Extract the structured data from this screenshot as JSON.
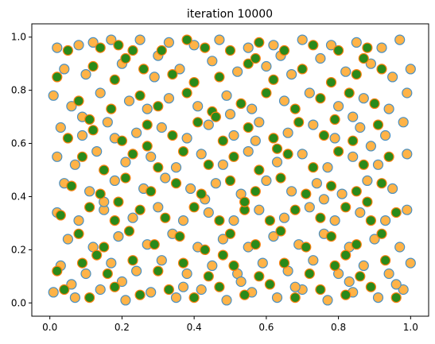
{
  "chart_data": {
    "type": "scatter",
    "title": "iteration 10000",
    "xlabel": "",
    "ylabel": "",
    "xlim": [
      -0.05,
      1.05
    ],
    "ylim": [
      -0.05,
      1.05
    ],
    "xticks": [
      0.0,
      0.2,
      0.4,
      0.6,
      0.8,
      1.0
    ],
    "yticks": [
      0.0,
      0.2,
      0.4,
      0.6,
      0.8,
      1.0
    ],
    "xtick_labels": [
      "0.0",
      "0.2",
      "0.4",
      "0.6",
      "0.8",
      "1.0"
    ],
    "ytick_labels": [
      "0.0",
      "0.2",
      "0.4",
      "0.6",
      "0.8",
      "1.0"
    ],
    "grid": false,
    "colors": {
      "orange_fill": "#ffb347",
      "orange_edge": "#4a8fc0",
      "green_fill": "#2a8a1a",
      "green_edge": "#ff7f0e"
    },
    "series": [
      {
        "style": "orange-fill-blue-edge",
        "points": [
          [
            0.02,
            0.96
          ],
          [
            0.08,
            0.97
          ],
          [
            0.12,
            0.98
          ],
          [
            0.17,
            0.99
          ],
          [
            0.25,
            0.99
          ],
          [
            0.33,
            0.98
          ],
          [
            0.4,
            0.97
          ],
          [
            0.47,
            0.99
          ],
          [
            0.55,
            0.96
          ],
          [
            0.62,
            0.97
          ],
          [
            0.7,
            0.99
          ],
          [
            0.78,
            0.97
          ],
          [
            0.85,
            0.98
          ],
          [
            0.92,
            0.96
          ],
          [
            0.97,
            0.99
          ],
          [
            0.04,
            0.88
          ],
          [
            0.1,
            0.86
          ],
          [
            0.2,
            0.9
          ],
          [
            0.29,
            0.85
          ],
          [
            0.36,
            0.88
          ],
          [
            0.45,
            0.91
          ],
          [
            0.52,
            0.87
          ],
          [
            0.6,
            0.89
          ],
          [
            0.67,
            0.86
          ],
          [
            0.75,
            0.92
          ],
          [
            0.82,
            0.87
          ],
          [
            0.89,
            0.9
          ],
          [
            0.95,
            0.85
          ],
          [
            1.0,
            0.88
          ],
          [
            0.01,
            0.78
          ],
          [
            0.06,
            0.74
          ],
          [
            0.14,
            0.79
          ],
          [
            0.22,
            0.76
          ],
          [
            0.27,
            0.73
          ],
          [
            0.33,
            0.77
          ],
          [
            0.41,
            0.74
          ],
          [
            0.49,
            0.78
          ],
          [
            0.56,
            0.73
          ],
          [
            0.65,
            0.76
          ],
          [
            0.72,
            0.79
          ],
          [
            0.8,
            0.74
          ],
          [
            0.87,
            0.77
          ],
          [
            0.94,
            0.73
          ],
          [
            0.99,
            0.79
          ],
          [
            0.03,
            0.66
          ],
          [
            0.09,
            0.63
          ],
          [
            0.16,
            0.68
          ],
          [
            0.24,
            0.64
          ],
          [
            0.31,
            0.66
          ],
          [
            0.38,
            0.62
          ],
          [
            0.44,
            0.67
          ],
          [
            0.51,
            0.63
          ],
          [
            0.58,
            0.68
          ],
          [
            0.66,
            0.64
          ],
          [
            0.73,
            0.67
          ],
          [
            0.79,
            0.62
          ],
          [
            0.86,
            0.66
          ],
          [
            0.93,
            0.63
          ],
          [
            0.98,
            0.68
          ],
          [
            0.02,
            0.55
          ],
          [
            0.07,
            0.52
          ],
          [
            0.13,
            0.57
          ],
          [
            0.21,
            0.53
          ],
          [
            0.28,
            0.55
          ],
          [
            0.35,
            0.51
          ],
          [
            0.42,
            0.56
          ],
          [
            0.48,
            0.52
          ],
          [
            0.55,
            0.57
          ],
          [
            0.63,
            0.53
          ],
          [
            0.7,
            0.56
          ],
          [
            0.77,
            0.51
          ],
          [
            0.84,
            0.55
          ],
          [
            0.91,
            0.52
          ],
          [
            0.99,
            0.56
          ],
          [
            0.04,
            0.45
          ],
          [
            0.11,
            0.42
          ],
          [
            0.18,
            0.46
          ],
          [
            0.26,
            0.43
          ],
          [
            0.32,
            0.47
          ],
          [
            0.39,
            0.43
          ],
          [
            0.46,
            0.45
          ],
          [
            0.53,
            0.41
          ],
          [
            0.6,
            0.46
          ],
          [
            0.67,
            0.42
          ],
          [
            0.74,
            0.45
          ],
          [
            0.81,
            0.41
          ],
          [
            0.88,
            0.46
          ],
          [
            0.95,
            0.43
          ],
          [
            0.02,
            0.34
          ],
          [
            0.08,
            0.31
          ],
          [
            0.15,
            0.35
          ],
          [
            0.23,
            0.32
          ],
          [
            0.3,
            0.36
          ],
          [
            0.37,
            0.31
          ],
          [
            0.44,
            0.34
          ],
          [
            0.51,
            0.31
          ],
          [
            0.58,
            0.35
          ],
          [
            0.65,
            0.32
          ],
          [
            0.72,
            0.36
          ],
          [
            0.79,
            0.31
          ],
          [
            0.86,
            0.34
          ],
          [
            0.93,
            0.31
          ],
          [
            0.99,
            0.35
          ],
          [
            0.05,
            0.24
          ],
          [
            0.12,
            0.21
          ],
          [
            0.19,
            0.25
          ],
          [
            0.27,
            0.22
          ],
          [
            0.34,
            0.26
          ],
          [
            0.41,
            0.21
          ],
          [
            0.48,
            0.24
          ],
          [
            0.55,
            0.21
          ],
          [
            0.62,
            0.25
          ],
          [
            0.69,
            0.22
          ],
          [
            0.76,
            0.26
          ],
          [
            0.83,
            0.21
          ],
          [
            0.9,
            0.24
          ],
          [
            0.97,
            0.21
          ],
          [
            0.03,
            0.14
          ],
          [
            0.1,
            0.11
          ],
          [
            0.17,
            0.15
          ],
          [
            0.24,
            0.12
          ],
          [
            0.31,
            0.16
          ],
          [
            0.38,
            0.11
          ],
          [
            0.45,
            0.14
          ],
          [
            0.52,
            0.11
          ],
          [
            0.59,
            0.15
          ],
          [
            0.66,
            0.12
          ],
          [
            0.73,
            0.16
          ],
          [
            0.8,
            0.11
          ],
          [
            0.87,
            0.14
          ],
          [
            0.94,
            0.11
          ],
          [
            1.0,
            0.15
          ],
          [
            0.01,
            0.04
          ],
          [
            0.07,
            0.02
          ],
          [
            0.14,
            0.05
          ],
          [
            0.21,
            0.01
          ],
          [
            0.28,
            0.04
          ],
          [
            0.35,
            0.02
          ],
          [
            0.42,
            0.05
          ],
          [
            0.49,
            0.01
          ],
          [
            0.56,
            0.04
          ],
          [
            0.63,
            0.02
          ],
          [
            0.7,
            0.05
          ],
          [
            0.77,
            0.01
          ],
          [
            0.84,
            0.04
          ],
          [
            0.91,
            0.02
          ],
          [
            0.98,
            0.05
          ],
          [
            0.06,
            0.07
          ],
          [
            0.2,
            0.08
          ],
          [
            0.37,
            0.06
          ],
          [
            0.53,
            0.08
          ],
          [
            0.68,
            0.06
          ],
          [
            0.83,
            0.08
          ],
          [
            0.96,
            0.07
          ],
          [
            0.15,
            0.38
          ],
          [
            0.43,
            0.39
          ],
          [
            0.76,
            0.39
          ],
          [
            0.09,
            0.7
          ],
          [
            0.5,
            0.71
          ],
          [
            0.84,
            0.7
          ],
          [
            0.3,
            0.93
          ],
          [
            0.64,
            0.93
          ],
          [
            0.18,
            0.62
          ],
          [
            0.57,
            0.61
          ],
          [
            0.89,
            0.59
          ]
        ]
      },
      {
        "style": "green-fill-orange-edge",
        "points": [
          [
            0.05,
            0.95
          ],
          [
            0.14,
            0.96
          ],
          [
            0.19,
            0.97
          ],
          [
            0.23,
            0.95
          ],
          [
            0.31,
            0.95
          ],
          [
            0.38,
            0.99
          ],
          [
            0.43,
            0.96
          ],
          [
            0.5,
            0.95
          ],
          [
            0.58,
            0.98
          ],
          [
            0.65,
            0.95
          ],
          [
            0.73,
            0.97
          ],
          [
            0.8,
            0.95
          ],
          [
            0.88,
            0.96
          ],
          [
            0.02,
            0.85
          ],
          [
            0.12,
            0.89
          ],
          [
            0.18,
            0.84
          ],
          [
            0.26,
            0.88
          ],
          [
            0.34,
            0.86
          ],
          [
            0.4,
            0.83
          ],
          [
            0.47,
            0.85
          ],
          [
            0.55,
            0.9
          ],
          [
            0.62,
            0.84
          ],
          [
            0.7,
            0.88
          ],
          [
            0.78,
            0.83
          ],
          [
            0.85,
            0.86
          ],
          [
            0.92,
            0.88
          ],
          [
            0.08,
            0.76
          ],
          [
            0.17,
            0.73
          ],
          [
            0.25,
            0.78
          ],
          [
            0.3,
            0.74
          ],
          [
            0.38,
            0.79
          ],
          [
            0.45,
            0.72
          ],
          [
            0.53,
            0.75
          ],
          [
            0.6,
            0.79
          ],
          [
            0.68,
            0.73
          ],
          [
            0.75,
            0.77
          ],
          [
            0.83,
            0.79
          ],
          [
            0.9,
            0.75
          ],
          [
            0.05,
            0.62
          ],
          [
            0.12,
            0.65
          ],
          [
            0.2,
            0.61
          ],
          [
            0.27,
            0.67
          ],
          [
            0.34,
            0.63
          ],
          [
            0.41,
            0.68
          ],
          [
            0.48,
            0.61
          ],
          [
            0.55,
            0.66
          ],
          [
            0.62,
            0.62
          ],
          [
            0.69,
            0.68
          ],
          [
            0.76,
            0.63
          ],
          [
            0.84,
            0.61
          ],
          [
            0.91,
            0.67
          ],
          [
            0.09,
            0.55
          ],
          [
            0.15,
            0.5
          ],
          [
            0.23,
            0.56
          ],
          [
            0.3,
            0.51
          ],
          [
            0.37,
            0.57
          ],
          [
            0.44,
            0.52
          ],
          [
            0.51,
            0.55
          ],
          [
            0.58,
            0.5
          ],
          [
            0.66,
            0.56
          ],
          [
            0.73,
            0.51
          ],
          [
            0.8,
            0.57
          ],
          [
            0.87,
            0.52
          ],
          [
            0.94,
            0.55
          ],
          [
            0.06,
            0.44
          ],
          [
            0.14,
            0.41
          ],
          [
            0.21,
            0.47
          ],
          [
            0.28,
            0.42
          ],
          [
            0.35,
            0.45
          ],
          [
            0.42,
            0.41
          ],
          [
            0.5,
            0.46
          ],
          [
            0.57,
            0.42
          ],
          [
            0.64,
            0.47
          ],
          [
            0.71,
            0.41
          ],
          [
            0.78,
            0.44
          ],
          [
            0.85,
            0.42
          ],
          [
            0.92,
            0.45
          ],
          [
            0.03,
            0.33
          ],
          [
            0.11,
            0.36
          ],
          [
            0.18,
            0.31
          ],
          [
            0.25,
            0.35
          ],
          [
            0.32,
            0.32
          ],
          [
            0.4,
            0.36
          ],
          [
            0.47,
            0.31
          ],
          [
            0.54,
            0.35
          ],
          [
            0.61,
            0.31
          ],
          [
            0.68,
            0.35
          ],
          [
            0.75,
            0.32
          ],
          [
            0.82,
            0.36
          ],
          [
            0.89,
            0.31
          ],
          [
            0.96,
            0.34
          ],
          [
            0.08,
            0.26
          ],
          [
            0.15,
            0.21
          ],
          [
            0.22,
            0.27
          ],
          [
            0.29,
            0.22
          ],
          [
            0.36,
            0.25
          ],
          [
            0.43,
            0.2
          ],
          [
            0.5,
            0.26
          ],
          [
            0.57,
            0.22
          ],
          [
            0.64,
            0.27
          ],
          [
            0.71,
            0.21
          ],
          [
            0.78,
            0.25
          ],
          [
            0.85,
            0.22
          ],
          [
            0.92,
            0.26
          ],
          [
            0.02,
            0.12
          ],
          [
            0.09,
            0.15
          ],
          [
            0.16,
            0.11
          ],
          [
            0.23,
            0.16
          ],
          [
            0.3,
            0.12
          ],
          [
            0.37,
            0.15
          ],
          [
            0.44,
            0.1
          ],
          [
            0.51,
            0.14
          ],
          [
            0.58,
            0.1
          ],
          [
            0.65,
            0.15
          ],
          [
            0.72,
            0.11
          ],
          [
            0.79,
            0.14
          ],
          [
            0.86,
            0.1
          ],
          [
            0.93,
            0.16
          ],
          [
            0.04,
            0.05
          ],
          [
            0.11,
            0.02
          ],
          [
            0.18,
            0.06
          ],
          [
            0.25,
            0.03
          ],
          [
            0.33,
            0.05
          ],
          [
            0.4,
            0.02
          ],
          [
            0.47,
            0.06
          ],
          [
            0.54,
            0.03
          ],
          [
            0.61,
            0.07
          ],
          [
            0.68,
            0.02
          ],
          [
            0.75,
            0.05
          ],
          [
            0.82,
            0.03
          ],
          [
            0.89,
            0.06
          ],
          [
            0.96,
            0.02
          ],
          [
            0.21,
            0.92
          ],
          [
            0.57,
            0.92
          ],
          [
            0.87,
            0.92
          ],
          [
            0.11,
            0.69
          ],
          [
            0.46,
            0.7
          ],
          [
            0.79,
            0.69
          ],
          [
            0.27,
            0.59
          ],
          [
            0.63,
            0.58
          ],
          [
            0.19,
            0.38
          ],
          [
            0.54,
            0.38
          ],
          [
            0.88,
            0.38
          ],
          [
            0.13,
            0.18
          ],
          [
            0.48,
            0.18
          ],
          [
            0.82,
            0.18
          ]
        ]
      }
    ]
  }
}
